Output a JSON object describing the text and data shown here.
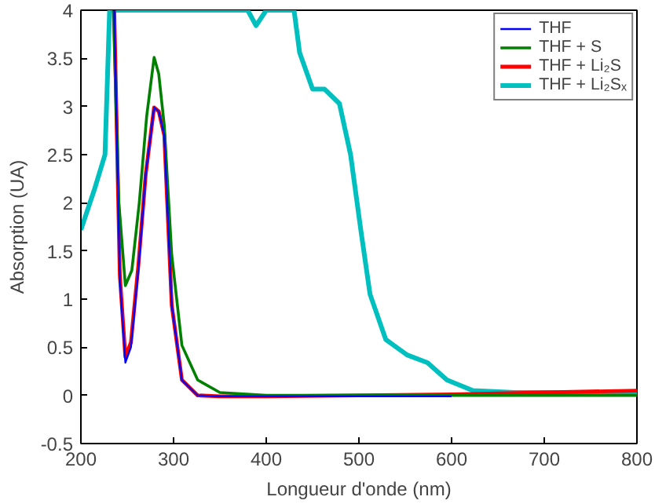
{
  "chart_data": {
    "type": "line",
    "xlabel": "Longueur d'onde (nm)",
    "ylabel": "Absorption (UA)",
    "xlim": [
      200,
      800
    ],
    "ylim": [
      -0.5,
      4
    ],
    "xticks": [
      200,
      300,
      400,
      500,
      600,
      700,
      800
    ],
    "yticks": [
      -0.5,
      0,
      0.5,
      1,
      1.5,
      2,
      2.5,
      3,
      3.5,
      4
    ],
    "grid": false,
    "legend": "top right",
    "line_style": "solid",
    "marker": "none",
    "series": [
      {
        "name": "THF",
        "color": "#0000ff",
        "x": [
          236,
          242,
          248,
          254,
          262,
          270,
          279,
          284,
          290,
          298,
          309,
          326,
          350,
          400,
          500,
          600
        ],
        "values": [
          4,
          1.2,
          0.34,
          0.5,
          1.3,
          2.3,
          2.99,
          2.95,
          2.7,
          0.94,
          0.16,
          0.0,
          -0.01,
          -0.01,
          -0.01,
          -0.01
        ]
      },
      {
        "name": "THF + S",
        "color": "#008000",
        "x": [
          235,
          241,
          248,
          255,
          263,
          271,
          279,
          284,
          290,
          298,
          309,
          326,
          350,
          400,
          500,
          600,
          700,
          800
        ],
        "values": [
          4,
          2.0,
          1.14,
          1.3,
          2.0,
          2.9,
          3.51,
          3.34,
          2.8,
          1.46,
          0.52,
          0.16,
          0.03,
          0.0,
          0.0,
          0.0,
          0.0,
          0.0
        ]
      },
      {
        "name": "THF + Li₂S",
        "color": "#ff0000",
        "x": [
          236,
          242,
          248,
          254,
          262,
          270,
          279,
          284,
          290,
          298,
          309,
          326,
          350,
          400,
          500,
          600,
          700,
          800
        ],
        "values": [
          4,
          1.25,
          0.4,
          0.55,
          1.35,
          2.3,
          2.99,
          2.95,
          2.7,
          0.94,
          0.16,
          0.0,
          -0.01,
          -0.01,
          0.0,
          0.01,
          0.03,
          0.05
        ]
      },
      {
        "name": "THF + Li₂Sₓ",
        "color": "#00bfbf",
        "x": [
          200,
          215,
          226,
          231,
          380,
          389,
          400,
          430,
          436,
          450,
          458,
          463,
          479,
          491,
          502,
          512,
          529,
          552,
          574,
          595,
          623,
          668,
          734,
          800
        ],
        "values": [
          1.72,
          2.15,
          2.5,
          4,
          4,
          3.84,
          4,
          4,
          3.56,
          3.18,
          3.18,
          3.18,
          3.03,
          2.5,
          1.72,
          1.05,
          0.58,
          0.42,
          0.34,
          0.16,
          0.05,
          0.03,
          0.03,
          0.03
        ]
      }
    ]
  }
}
